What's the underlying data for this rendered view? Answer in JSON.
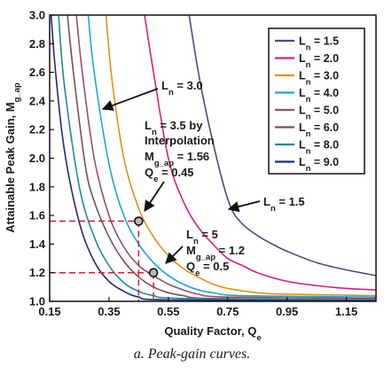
{
  "caption": "a. Peak-gain curves.",
  "chart_data": {
    "type": "line",
    "xlabel": "Quality Factor, Q",
    "xlabel_sub": "e",
    "ylabel": "Attainable Peak Gain, M",
    "ylabel_sub": "g_ap",
    "xlim": [
      0.15,
      1.25
    ],
    "ylim": [
      1.0,
      3.0
    ],
    "xticks": [
      "0.15",
      "0.35",
      "0.55",
      "0.75",
      "0.95",
      "1.15"
    ],
    "yticks": [
      "1.0",
      "1.2",
      "1.4",
      "1.6",
      "1.8",
      "2.0",
      "2.2",
      "2.4",
      "2.6",
      "2.8",
      "3.0"
    ],
    "legend_position": "top-right",
    "series": [
      {
        "name": "L",
        "sub": "n",
        "value": " = 1.5",
        "color": "#4a4a8a",
        "points": [
          [
            0.62,
            3.0
          ],
          [
            0.66,
            2.5
          ],
          [
            0.72,
            1.94
          ],
          [
            0.76,
            1.66
          ],
          [
            0.8,
            1.54
          ],
          [
            0.85,
            1.46
          ],
          [
            0.9,
            1.4
          ],
          [
            0.95,
            1.35
          ],
          [
            1.05,
            1.27
          ],
          [
            1.15,
            1.22
          ],
          [
            1.25,
            1.18
          ]
        ]
      },
      {
        "name": "L",
        "sub": "n",
        "value": " = 2.0",
        "color": "#d8227a",
        "points": [
          [
            0.47,
            3.0
          ],
          [
            0.5,
            2.6
          ],
          [
            0.55,
            2.0
          ],
          [
            0.6,
            1.7
          ],
          [
            0.65,
            1.52
          ],
          [
            0.7,
            1.4
          ],
          [
            0.75,
            1.3
          ],
          [
            0.8,
            1.25
          ],
          [
            0.85,
            1.2
          ],
          [
            0.95,
            1.14
          ],
          [
            1.05,
            1.11
          ],
          [
            1.15,
            1.09
          ],
          [
            1.25,
            1.08
          ]
        ]
      },
      {
        "name": "L",
        "sub": "n",
        "value": " = 3.0",
        "color": "#e39014",
        "points": [
          [
            0.34,
            3.0
          ],
          [
            0.36,
            2.55
          ],
          [
            0.4,
            2.0
          ],
          [
            0.45,
            1.65
          ],
          [
            0.5,
            1.45
          ],
          [
            0.55,
            1.32
          ],
          [
            0.6,
            1.23
          ],
          [
            0.65,
            1.17
          ],
          [
            0.7,
            1.12
          ],
          [
            0.75,
            1.09
          ],
          [
            0.85,
            1.06
          ],
          [
            0.95,
            1.05
          ],
          [
            1.25,
            1.04
          ]
        ]
      },
      {
        "name": "L",
        "sub": "n",
        "value": " = 4.0",
        "color": "#1aa6d8",
        "points": [
          [
            0.28,
            3.0
          ],
          [
            0.3,
            2.6
          ],
          [
            0.35,
            1.96
          ],
          [
            0.4,
            1.6
          ],
          [
            0.45,
            1.4
          ],
          [
            0.5,
            1.27
          ],
          [
            0.55,
            1.18
          ],
          [
            0.6,
            1.12
          ],
          [
            0.65,
            1.08
          ],
          [
            0.7,
            1.06
          ],
          [
            0.8,
            1.04
          ],
          [
            1.25,
            1.03
          ]
        ]
      },
      {
        "name": "L",
        "sub": "n",
        "value": " = 5.0",
        "color": "#9a4f6a",
        "points": [
          [
            0.24,
            3.0
          ],
          [
            0.26,
            2.6
          ],
          [
            0.3,
            2.0
          ],
          [
            0.35,
            1.6
          ],
          [
            0.4,
            1.38
          ],
          [
            0.45,
            1.25
          ],
          [
            0.5,
            1.18
          ],
          [
            0.55,
            1.12
          ],
          [
            0.6,
            1.08
          ],
          [
            0.65,
            1.05
          ],
          [
            0.75,
            1.03
          ],
          [
            1.25,
            1.02
          ]
        ]
      },
      {
        "name": "L",
        "sub": "n",
        "value": " = 6.0",
        "color": "#7a5050",
        "points": [
          [
            0.21,
            3.0
          ],
          [
            0.23,
            2.6
          ],
          [
            0.27,
            1.95
          ],
          [
            0.3,
            1.7
          ],
          [
            0.35,
            1.45
          ],
          [
            0.4,
            1.28
          ],
          [
            0.45,
            1.17
          ],
          [
            0.5,
            1.1
          ],
          [
            0.55,
            1.06
          ],
          [
            0.6,
            1.04
          ],
          [
            0.7,
            1.02
          ],
          [
            1.25,
            1.01
          ]
        ]
      },
      {
        "name": "L",
        "sub": "n",
        "value": " = 8.0",
        "color": "#1f8a9a",
        "points": [
          [
            0.18,
            3.0
          ],
          [
            0.2,
            2.5
          ],
          [
            0.25,
            1.8
          ],
          [
            0.3,
            1.45
          ],
          [
            0.35,
            1.25
          ],
          [
            0.4,
            1.13
          ],
          [
            0.45,
            1.07
          ],
          [
            0.5,
            1.04
          ],
          [
            0.6,
            1.02
          ],
          [
            1.25,
            1.005
          ]
        ]
      },
      {
        "name": "L",
        "sub": "n",
        "value": " = 9.0",
        "color": "#1f2a78",
        "points": [
          [
            0.155,
            3.0
          ],
          [
            0.17,
            2.6
          ],
          [
            0.2,
            2.05
          ],
          [
            0.25,
            1.55
          ],
          [
            0.3,
            1.28
          ],
          [
            0.35,
            1.14
          ],
          [
            0.4,
            1.07
          ],
          [
            0.45,
            1.03
          ],
          [
            0.55,
            1.01
          ],
          [
            1.25,
            1.003
          ]
        ]
      }
    ],
    "annotations": [
      {
        "id": "ln30",
        "lines": [
          [
            "L",
            "n",
            " = 3.0"
          ]
        ]
      },
      {
        "id": "ln35",
        "lines": [
          [
            "L",
            "n",
            " = 3.5 by"
          ],
          [
            "Interpolation",
            "",
            ""
          ],
          [
            "M",
            "g_ap",
            " = 1.56"
          ],
          [
            "Q",
            "e",
            " = 0.45"
          ]
        ]
      },
      {
        "id": "ln15",
        "lines": [
          [
            "L",
            "n",
            " = 1.5"
          ]
        ]
      },
      {
        "id": "ln5",
        "lines": [
          [
            "L",
            "n",
            " = 5"
          ],
          [
            "M",
            "g_ap",
            " = 1.2"
          ],
          [
            "Q",
            "e",
            " = 0.5"
          ]
        ]
      }
    ],
    "markers": [
      {
        "x": 0.45,
        "y": 1.56,
        "guide_color": "#d01e2e"
      },
      {
        "x": 0.5,
        "y": 1.2,
        "guide_color": "#d01e2e"
      }
    ],
    "grid": false
  }
}
